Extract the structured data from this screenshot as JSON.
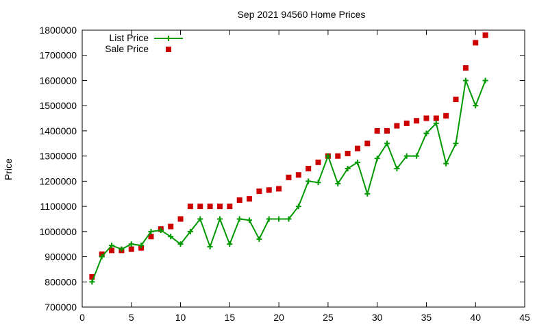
{
  "chart_data": {
    "type": "line",
    "title": "Sep 2021 94560 Home Prices",
    "xlabel": "",
    "ylabel": "Price",
    "xlim": [
      0,
      45
    ],
    "ylim": [
      700000,
      1800000
    ],
    "x_ticks": [
      0,
      5,
      10,
      15,
      20,
      25,
      30,
      35,
      40,
      45
    ],
    "y_ticks": [
      700000,
      800000,
      900000,
      1000000,
      1100000,
      1200000,
      1300000,
      1400000,
      1500000,
      1600000,
      1700000,
      1800000
    ],
    "grid": false,
    "legend_position": "top-left",
    "series": [
      {
        "name": "List Price",
        "style": "line-with-plus-markers",
        "color": "#009900",
        "x": [
          1,
          2,
          3,
          4,
          5,
          6,
          7,
          8,
          9,
          10,
          11,
          12,
          13,
          14,
          15,
          16,
          17,
          18,
          19,
          20,
          21,
          22,
          23,
          24,
          25,
          26,
          27,
          28,
          29,
          30,
          31,
          32,
          33,
          34,
          35,
          36,
          37,
          38,
          39,
          40,
          41
        ],
        "values": [
          800000,
          900000,
          945000,
          930000,
          950000,
          945000,
          1000000,
          1005000,
          980000,
          950000,
          1000000,
          1050000,
          940000,
          1050000,
          950000,
          1050000,
          1045000,
          970000,
          1050000,
          1050000,
          1050000,
          1100000,
          1200000,
          1195000,
          1300000,
          1190000,
          1250000,
          1275000,
          1150000,
          1290000,
          1350000,
          1250000,
          1300000,
          1300000,
          1390000,
          1430000,
          1270000,
          1350000,
          1600000,
          1500000,
          1600000
        ]
      },
      {
        "name": "Sale Price",
        "style": "square-markers",
        "color": "#cc0000",
        "x": [
          1,
          2,
          3,
          4,
          5,
          6,
          7,
          8,
          9,
          10,
          11,
          12,
          13,
          14,
          15,
          16,
          17,
          18,
          19,
          20,
          21,
          22,
          23,
          24,
          25,
          26,
          27,
          28,
          29,
          30,
          31,
          32,
          33,
          34,
          35,
          36,
          37,
          38,
          39,
          40,
          41
        ],
        "values": [
          820000,
          910000,
          925000,
          925000,
          930000,
          935000,
          980000,
          1010000,
          1020000,
          1050000,
          1100000,
          1100000,
          1100000,
          1100000,
          1100000,
          1125000,
          1130000,
          1160000,
          1165000,
          1170000,
          1215000,
          1225000,
          1250000,
          1275000,
          1300000,
          1300000,
          1310000,
          1330000,
          1350000,
          1400000,
          1400000,
          1420000,
          1430000,
          1440000,
          1450000,
          1450000,
          1460000,
          1525000,
          1650000,
          1750000,
          1780000
        ]
      }
    ]
  }
}
